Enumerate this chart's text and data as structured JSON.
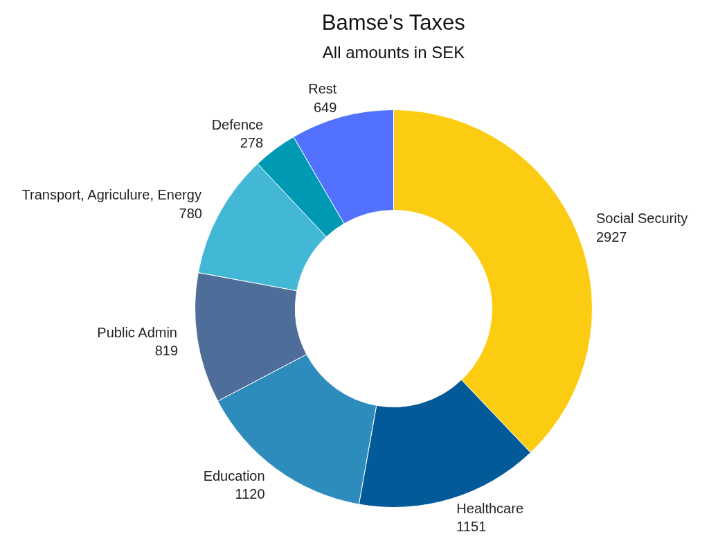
{
  "chart_data": {
    "type": "donut",
    "title": "Bamse's Taxes",
    "subtitle": "All amounts in SEK",
    "categories": [
      "Social Security",
      "Healthcare",
      "Education",
      "Public Admin",
      "Transport, Agriculure, Energy",
      "Defence",
      "Rest"
    ],
    "values": [
      2927,
      1151,
      1120,
      819,
      780,
      278,
      649
    ],
    "colors": [
      "#fccc12",
      "#025a99",
      "#2e8cbd",
      "#4f6d99",
      "#42b8d6",
      "#0099b3",
      "#5271ff"
    ],
    "data_labels": true
  }
}
